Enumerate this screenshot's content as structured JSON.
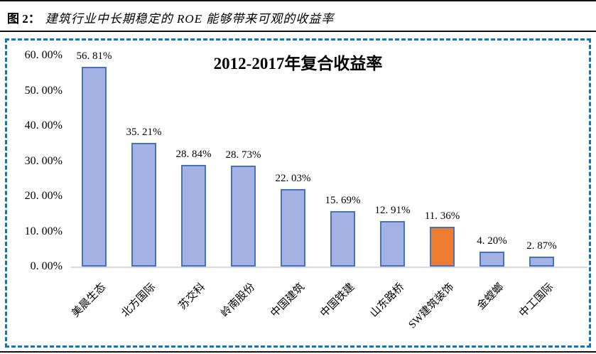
{
  "header": {
    "figure_label": "图 2：",
    "figure_title": "建筑行业中长期稳定的 ROE 能够带来可观的收益率"
  },
  "chart_data": {
    "type": "bar",
    "title": "2012-2017年复合收益率",
    "categories": [
      "美晨生态",
      "北方国际",
      "苏交科",
      "岭南股份",
      "中国建筑",
      "中国铁建",
      "山东路桥",
      "SW建筑装饰",
      "金螳螂",
      "中工国际"
    ],
    "values": [
      56.81,
      35.21,
      28.84,
      28.73,
      22.03,
      15.69,
      12.91,
      11.36,
      4.2,
      2.87
    ],
    "value_labels": [
      "56. 81%",
      "35. 21%",
      "28. 84%",
      "28. 73%",
      "22. 03%",
      "15. 69%",
      "12. 91%",
      "11. 36%",
      "4. 20%",
      "2. 87%"
    ],
    "ytick_labels": [
      "60. 00%",
      "50. 00%",
      "40. 00%",
      "30. 00%",
      "20. 00%",
      "10. 00%",
      "0. 00%"
    ],
    "ylim": [
      0,
      60
    ],
    "xlabel": "",
    "ylabel": "",
    "grid": false,
    "legend": false,
    "highlight_index": 7,
    "colors": {
      "bar_fill": "#a4b3e3",
      "bar_border": "#4472c4",
      "highlight_fill": "#ed7d31",
      "axis_line": "#d9d9d9",
      "panel_border": "#0f75be",
      "rule": "#111111"
    }
  }
}
